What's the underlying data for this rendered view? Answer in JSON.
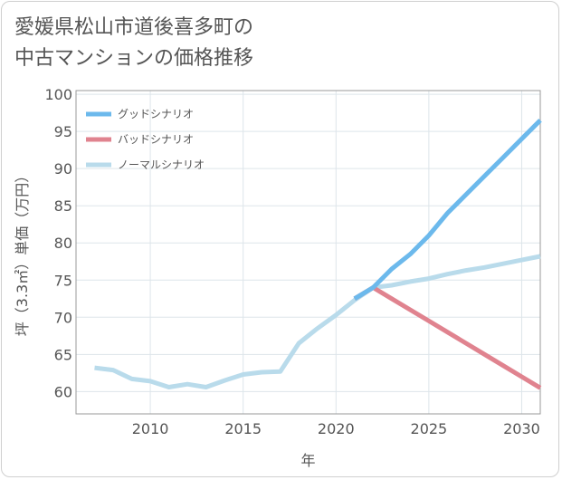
{
  "title": "愛媛県松山市道後喜多町の\n中古マンションの価格推移",
  "chart_data": {
    "type": "line",
    "xlabel": "年",
    "ylabel": "坪（3.3㎡）単価（万円）",
    "xlim": [
      2006,
      2031
    ],
    "ylim": [
      57,
      100.5
    ],
    "xticks": [
      2010,
      2015,
      2020,
      2025,
      2030
    ],
    "yticks": [
      60,
      65,
      70,
      75,
      80,
      85,
      90,
      95,
      100
    ],
    "grid": true,
    "legend_position": "top-left",
    "series": [
      {
        "name": "グッドシナリオ",
        "color": "#6cb9ec",
        "x": [
          2021,
          2022,
          2023,
          2024,
          2025,
          2026,
          2027,
          2028,
          2029,
          2030,
          2031
        ],
        "y": [
          72.5,
          74,
          76.5,
          78.5,
          81,
          84,
          86.5,
          89,
          91.5,
          94,
          96.5
        ]
      },
      {
        "name": "バッドシナリオ",
        "color": "#e0838f",
        "x": [
          2021,
          2022,
          2023,
          2024,
          2025,
          2026,
          2027,
          2028,
          2029,
          2030,
          2031
        ],
        "y": [
          72.5,
          74,
          72.5,
          71,
          69.5,
          68,
          66.5,
          65,
          63.5,
          62,
          60.5
        ]
      },
      {
        "name": "ノーマルシナリオ",
        "color": "#b9dbeb",
        "x": [
          2007,
          2008,
          2009,
          2010,
          2011,
          2012,
          2013,
          2014,
          2015,
          2016,
          2017,
          2018,
          2019,
          2020,
          2021,
          2022,
          2023,
          2024,
          2025,
          2026,
          2027,
          2028,
          2029,
          2030,
          2031
        ],
        "y": [
          63.2,
          62.9,
          61.7,
          61.4,
          60.6,
          61.0,
          60.6,
          61.5,
          62.3,
          62.6,
          62.7,
          66.5,
          68.5,
          70.3,
          72.3,
          74,
          74.3,
          74.8,
          75.2,
          75.8,
          76.3,
          76.7,
          77.2,
          77.7,
          78.2
        ]
      }
    ]
  }
}
